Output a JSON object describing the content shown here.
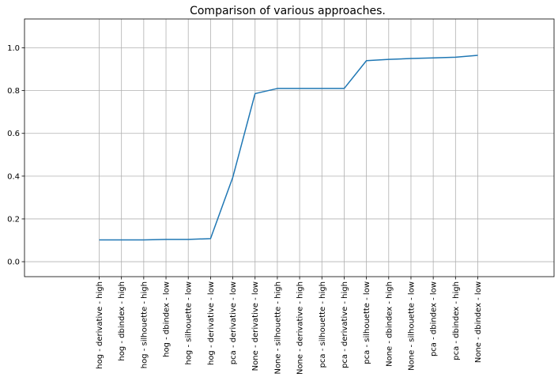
{
  "chart_data": {
    "type": "line",
    "title": "Comparison of various approaches.",
    "xlabel": "",
    "ylabel": "",
    "categories": [
      "hog - derivative - high",
      "hog - dbindex - high",
      "hog - silhouette - high",
      "hog - dbindex - low",
      "hog - silhouette - low",
      "hog - derivative - low",
      "pca - derivative - low",
      "None - derivative - low",
      "None - silhouette - high",
      "None - derivative - high",
      "pca - silhouette - high",
      "pca - derivative - high",
      "pca - silhouette - low",
      "None - dbindex - high",
      "None - silhouette - low",
      "pca - dbindex - low",
      "pca - dbindex - high",
      "None - dbindex - low"
    ],
    "values": [
      0.102,
      0.102,
      0.102,
      0.104,
      0.104,
      0.108,
      0.395,
      0.786,
      0.81,
      0.81,
      0.81,
      0.81,
      0.94,
      0.946,
      0.95,
      0.953,
      0.956,
      0.965
    ],
    "ylim": [
      -0.07,
      1.135
    ],
    "yticks": [
      0.0,
      0.2,
      0.4,
      0.6,
      0.8,
      1.0
    ],
    "ytick_labels": [
      "0.0",
      "0.2",
      "0.4",
      "0.6",
      "0.8",
      "1.0"
    ],
    "grid": true,
    "line_color": "#1f77b4"
  }
}
